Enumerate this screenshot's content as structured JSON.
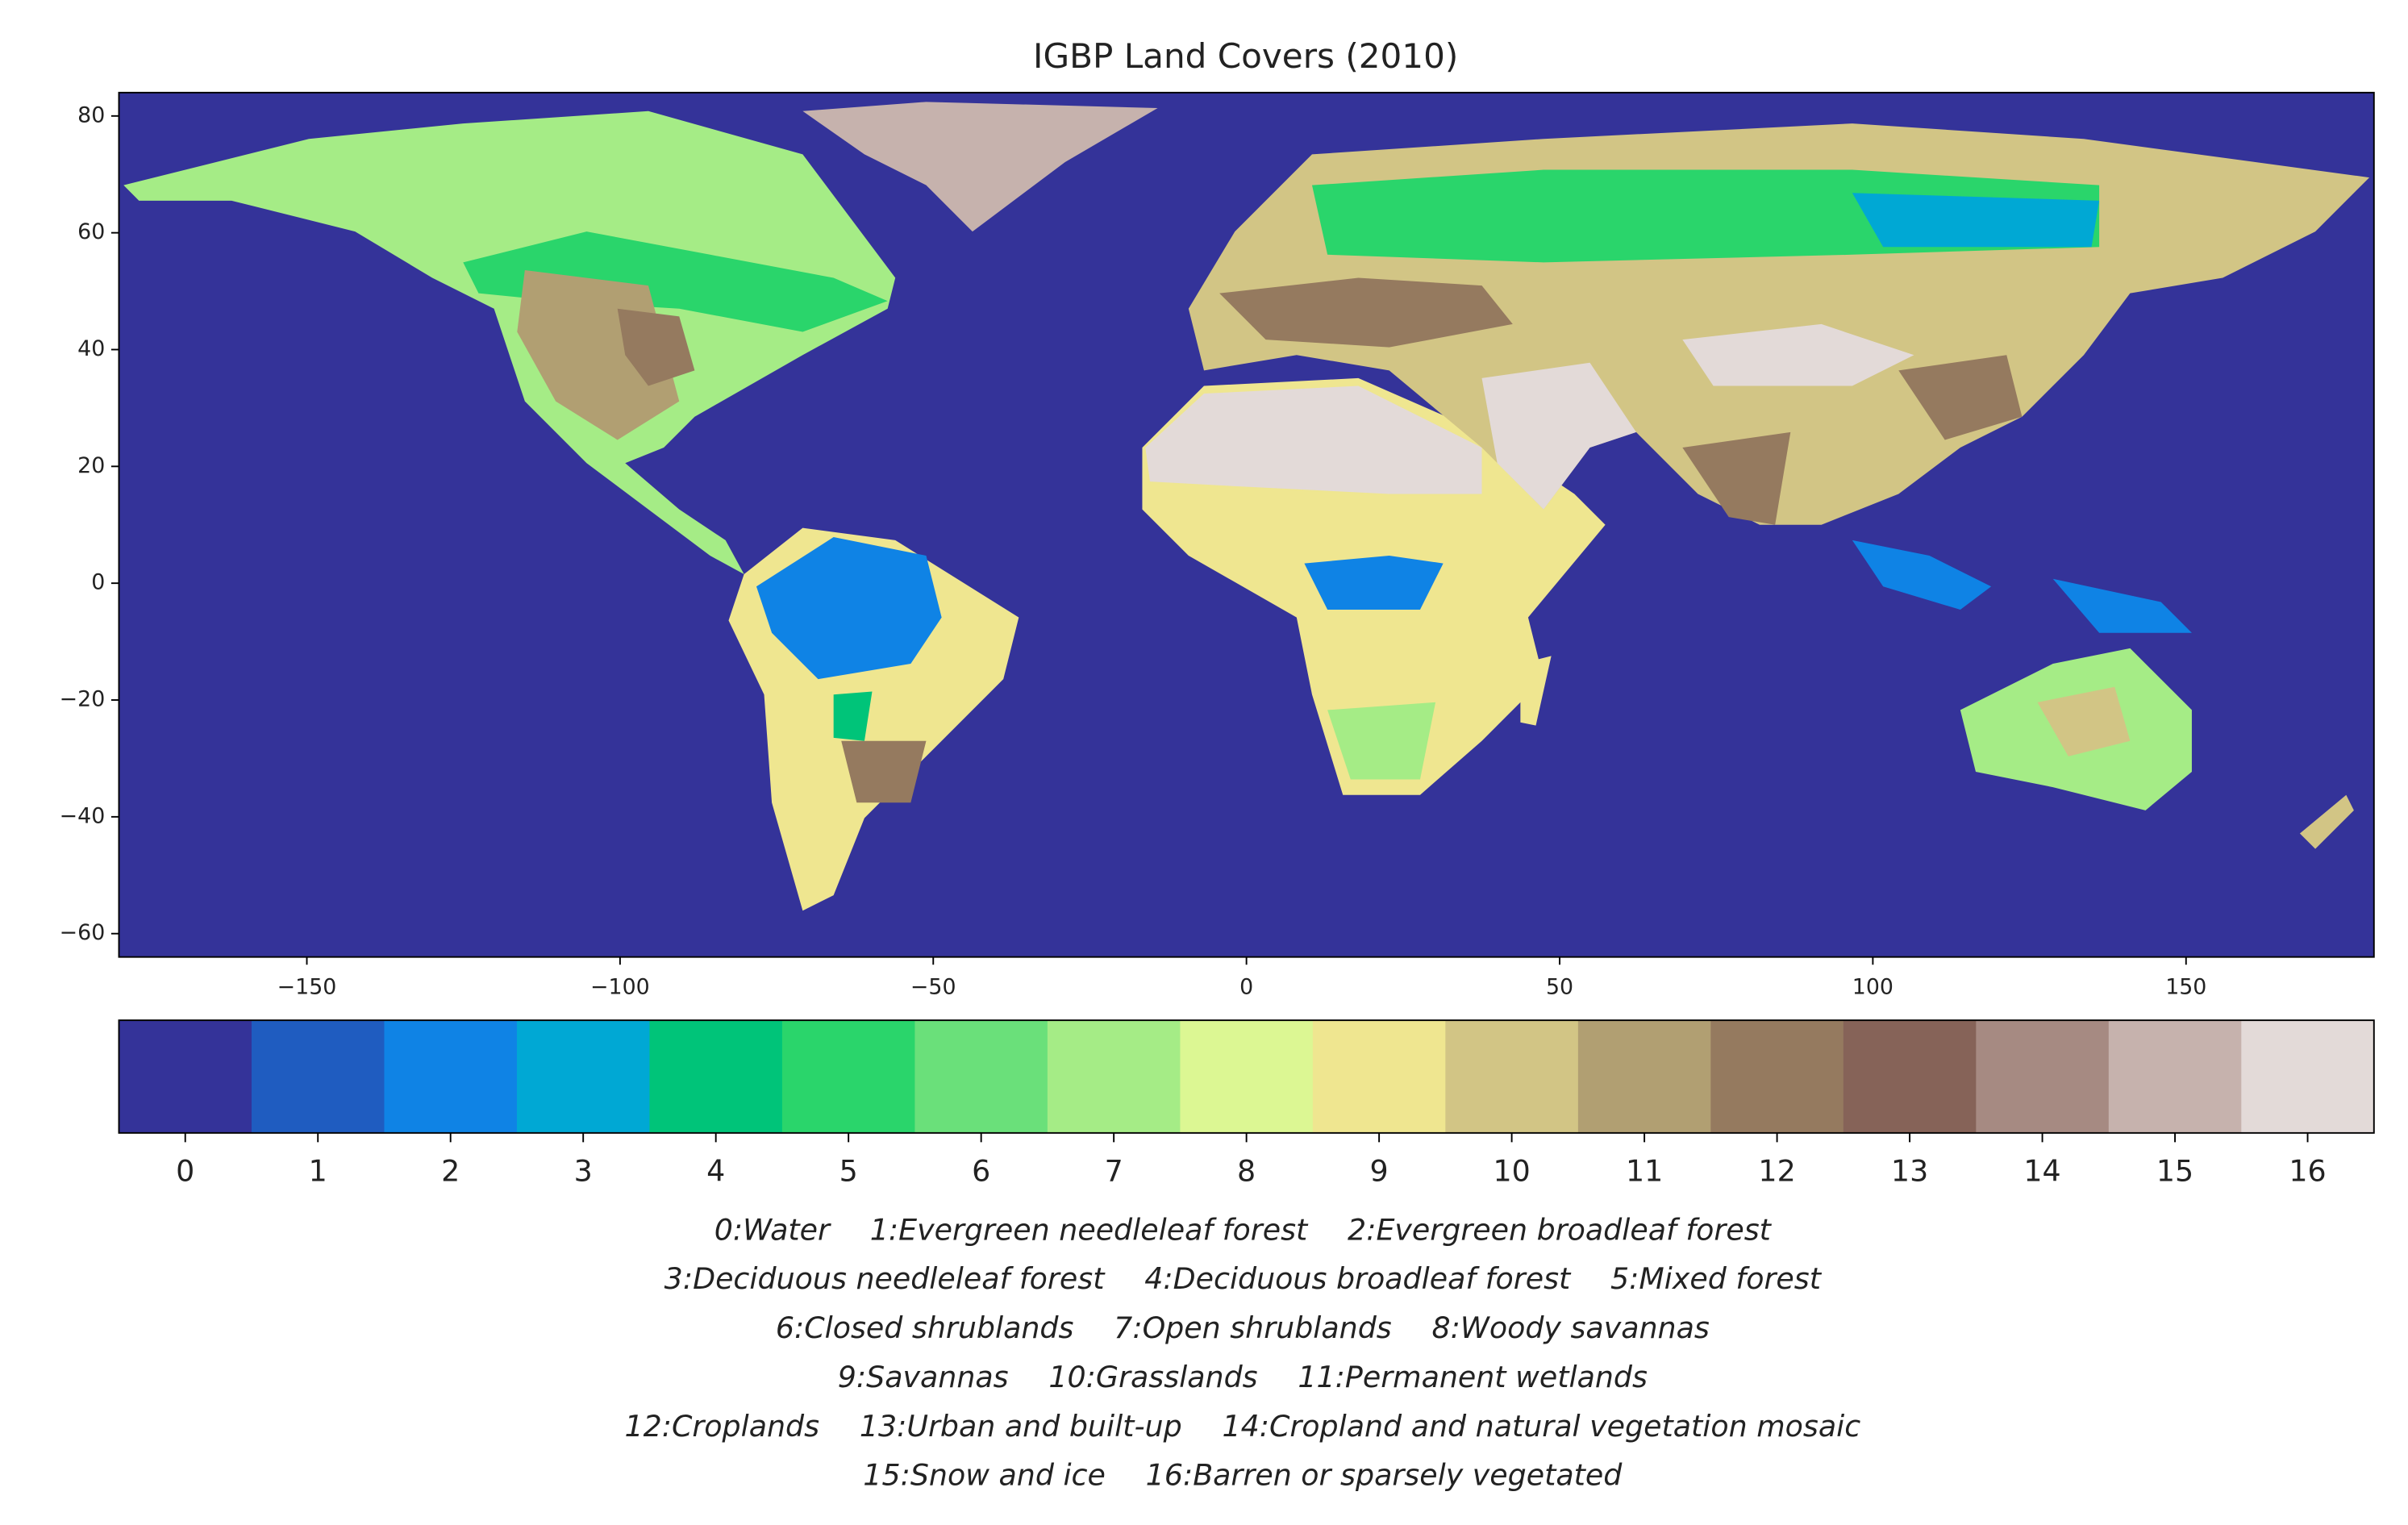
{
  "chart_data": {
    "type": "map",
    "title": "IGBP Land Covers (2010)",
    "xlim": [
      -180,
      180
    ],
    "ylim": [
      -64,
      84
    ],
    "xticks": [
      {
        "value": -150,
        "label": "−150"
      },
      {
        "value": -100,
        "label": "−100"
      },
      {
        "value": -50,
        "label": "−50"
      },
      0,
      50,
      100,
      150
    ],
    "yticks": [
      {
        "value": -60,
        "label": "−60"
      },
      {
        "value": -40,
        "label": "−40"
      },
      {
        "value": -20,
        "label": "−20"
      },
      0,
      20,
      40,
      60,
      80
    ],
    "colorbar": {
      "lim": [
        -0.5,
        16.5
      ],
      "ticks": [
        0,
        1,
        2,
        3,
        4,
        5,
        6,
        7,
        8,
        9,
        10,
        11,
        12,
        13,
        14,
        15,
        16
      ],
      "colors": [
        "#343399",
        "#1f5cc0",
        "#0f83e5",
        "#00a8d4",
        "#00c479",
        "#2ad56b",
        "#6ae07a",
        "#a5ec86",
        "#dcf793",
        "#efe690",
        "#d2c585",
        "#b19f72",
        "#957a5f",
        "#866358",
        "#a68a82",
        "#c6b2ad",
        "#e3dad8"
      ]
    },
    "legend_lines": [
      [
        "0:Water",
        "1:Evergreen needleleaf forest",
        "2:Evergreen broadleaf forest"
      ],
      [
        "3:Deciduous needleleaf forest",
        "4:Deciduous broadleaf forest",
        "5:Mixed forest"
      ],
      [
        "6:Closed shrublands",
        "7:Open shrublands",
        "8:Woody savannas"
      ],
      [
        "9:Savannas",
        "10:Grasslands",
        "11:Permanent wetlands"
      ],
      [
        "12:Croplands",
        "13:Urban and built-up",
        "14:Cropland and natural vegetation mosaic"
      ],
      [
        "15:Snow and ice",
        "16:Barren or sparsely vegetated"
      ]
    ]
  }
}
